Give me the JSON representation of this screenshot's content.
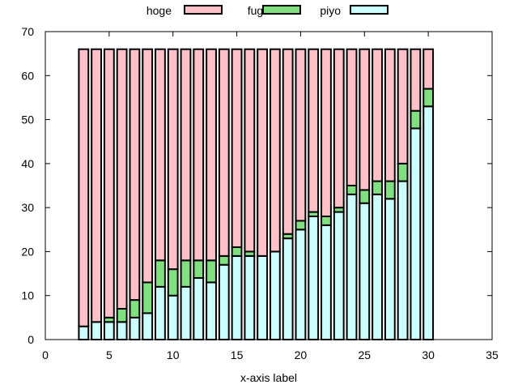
{
  "chart_data": {
    "type": "bar",
    "stacked": true,
    "xlabel": "x-axis label",
    "ylabel": "",
    "title": "",
    "xlim": [
      0,
      35
    ],
    "ylim": [
      0,
      70
    ],
    "xticks": [
      0,
      5,
      10,
      15,
      20,
      25,
      30,
      35
    ],
    "yticks": [
      0,
      10,
      20,
      30,
      40,
      50,
      60,
      70
    ],
    "legend_position": "top",
    "x": [
      3,
      4,
      5,
      6,
      7,
      8,
      9,
      10,
      11,
      12,
      13,
      14,
      15,
      16,
      17,
      18,
      19,
      20,
      21,
      22,
      23,
      24,
      25,
      26,
      27,
      28,
      29,
      30
    ],
    "series": [
      {
        "name": "piyo",
        "color": "#ccffff",
        "values": [
          3,
          4,
          4,
          4,
          5,
          6,
          12,
          10,
          12,
          14,
          13,
          17,
          19,
          19,
          19,
          20,
          23,
          25,
          28,
          26,
          29,
          33,
          31,
          33,
          32,
          36,
          48,
          53
        ]
      },
      {
        "name": "fuga",
        "color": "#80e080",
        "values": [
          0,
          0,
          1,
          3,
          4,
          7,
          6,
          6,
          6,
          4,
          5,
          2,
          2,
          1,
          0,
          0,
          1,
          2,
          1,
          2,
          1,
          2,
          3,
          3,
          4,
          4,
          4,
          4
        ]
      },
      {
        "name": "hoge",
        "color": "#ffc0c8",
        "values": [
          63,
          62,
          61,
          59,
          57,
          53,
          48,
          50,
          48,
          48,
          48,
          47,
          45,
          46,
          47,
          46,
          42,
          39,
          37,
          38,
          36,
          31,
          32,
          30,
          30,
          26,
          14,
          9
        ]
      }
    ],
    "legend_order": [
      "hoge",
      "fuga",
      "piyo"
    ]
  }
}
